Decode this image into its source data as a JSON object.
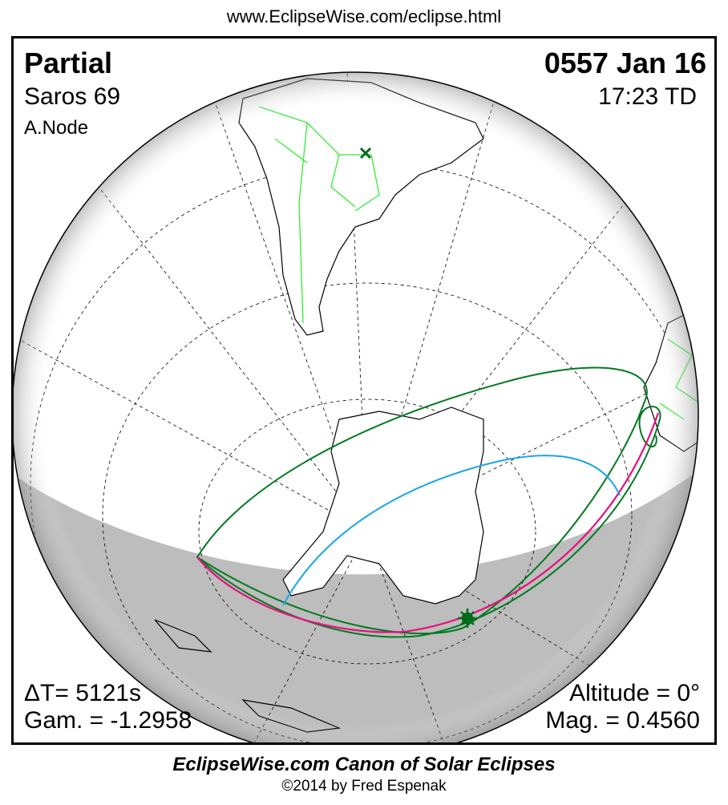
{
  "url": "www.EclipseWise.com/eclipse.html",
  "eclipse": {
    "type": "Partial",
    "saros": "Saros  69",
    "node": "A.Node",
    "date": "0557 Jan 16",
    "time": "17:23 TD",
    "delta_t": "ΔT=   5121s",
    "gamma": "Gam. = -1.2958",
    "altitude": "Altitude =  0°",
    "magnitude": "Mag. = 0.4560"
  },
  "footer": {
    "title": "EclipseWise.com Canon of Solar Eclipses",
    "copyright": "©2014 by Fred Espenak"
  },
  "colors": {
    "night_shade": "#bdbdbd",
    "coastline": "#000000",
    "borders": "#33ee33",
    "penumbra_limits": "#007a1f",
    "max_eclipse_rise_set": "#e8107e",
    "greatest_eclipse_curve": "#1aa7e8",
    "markers": "#006b1a"
  },
  "markers": [
    "x-mark-subsolar-point",
    "sun-greatest-eclipse-icon"
  ]
}
